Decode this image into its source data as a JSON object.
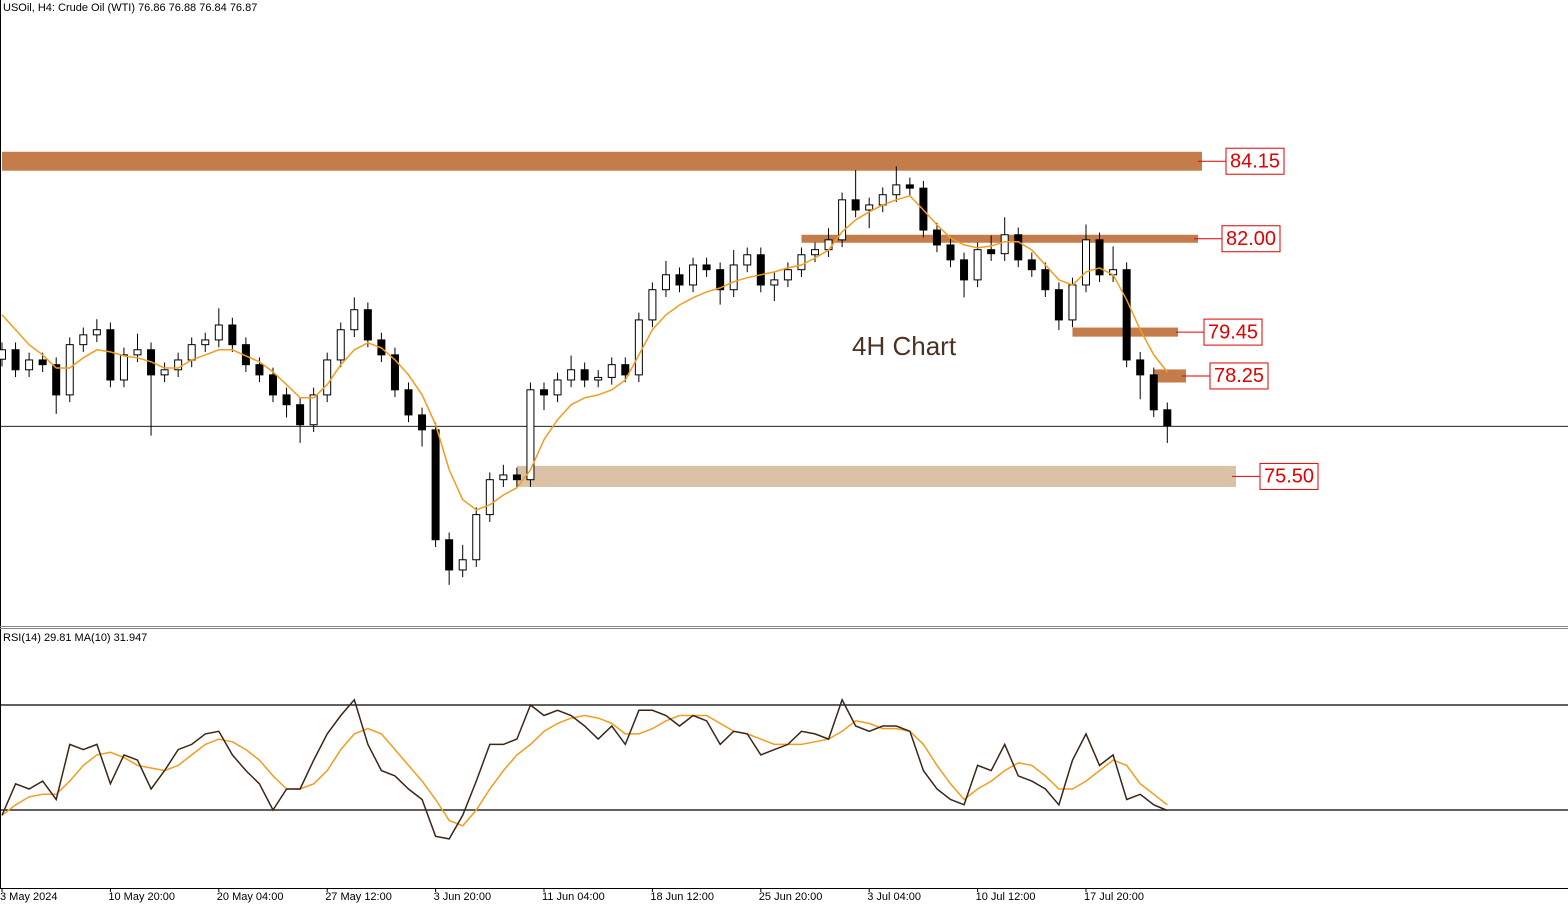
{
  "chart_data": [
    {
      "type": "candlestick",
      "title": "USOil, H4:  Crude Oil (WTI)  76.86 76.88 76.84 76.87",
      "annotation": "4H Chart",
      "categories": [
        "3 May 2024",
        null,
        null,
        null,
        null,
        null,
        null,
        null,
        "10 May 20:00",
        null,
        null,
        null,
        null,
        null,
        null,
        null,
        "20 May 04:00",
        null,
        null,
        null,
        null,
        null,
        null,
        null,
        "27 May 12:00",
        null,
        null,
        null,
        null,
        null,
        null,
        null,
        "3 Jun 20:00",
        null,
        null,
        null,
        null,
        null,
        null,
        null,
        "11 Jun 04:00",
        null,
        null,
        null,
        null,
        null,
        null,
        null,
        "18 Jun 12:00",
        null,
        null,
        null,
        null,
        null,
        null,
        null,
        "25 Jun 20:00",
        null,
        null,
        null,
        null,
        null,
        null,
        null,
        "3 Jul 04:00",
        null,
        null,
        null,
        null,
        null,
        null,
        null,
        "10 Jul 12:00",
        null,
        null,
        null,
        null,
        null,
        null,
        null,
        "17 Jul 20:00",
        null,
        null,
        null,
        null,
        null,
        null
      ],
      "open": [
        78.7,
        78.96,
        78.41,
        78.68,
        78.55,
        77.72,
        79.1,
        79.37,
        79.51,
        78.13,
        78.82,
        78.96,
        78.27,
        78.41,
        78.68,
        79.1,
        79.23,
        79.64,
        79.1,
        78.55,
        78.27,
        77.72,
        77.45,
        76.9,
        77.72,
        78.68,
        79.51,
        80.06,
        79.23,
        78.82,
        77.86,
        77.17,
        76.76,
        73.74,
        72.91,
        73.19,
        74.43,
        75.39,
        75.52,
        75.39,
        77.86,
        77.72,
        78.13,
        78.41,
        78.13,
        78.2,
        78.55,
        78.27,
        79.78,
        80.61,
        81.02,
        80.74,
        81.29,
        81.16,
        80.61,
        81.29,
        81.57,
        80.74,
        80.88,
        81.16,
        81.57,
        81.71,
        81.98,
        83.08,
        82.8,
        82.94,
        83.22,
        83.49,
        83.4,
        82.25,
        81.84,
        81.43,
        80.88,
        81.71,
        81.6,
        82.12,
        81.43,
        81.16,
        80.61,
        79.78,
        80.74,
        81.98,
        81.02,
        81.16,
        78.68,
        78.27,
        77.31
      ],
      "high": [
        79.16,
        79.16,
        78.88,
        78.88,
        78.75,
        79.3,
        79.57,
        79.8,
        79.71,
        79.02,
        79.4,
        79.16,
        78.61,
        78.88,
        79.3,
        79.43,
        80.1,
        79.84,
        79.3,
        78.75,
        78.47,
        77.92,
        77.65,
        77.92,
        78.88,
        79.71,
        80.4,
        80.26,
        79.43,
        79.02,
        78.06,
        77.37,
        76.96,
        73.94,
        73.6,
        74.63,
        75.59,
        75.8,
        75.72,
        78.06,
        78.06,
        78.33,
        78.8,
        78.61,
        78.4,
        78.75,
        78.75,
        79.98,
        80.81,
        81.4,
        81.22,
        81.49,
        81.49,
        81.36,
        81.7,
        81.77,
        81.77,
        81.08,
        81.36,
        81.77,
        81.91,
        82.3,
        83.28,
        83.9,
        83.14,
        83.42,
        84.0,
        83.69,
        83.6,
        82.45,
        82.04,
        81.63,
        81.91,
        82.1,
        82.6,
        82.32,
        81.63,
        81.36,
        80.81,
        80.94,
        82.4,
        82.18,
        81.8,
        81.36,
        78.9,
        78.47,
        77.51
      ],
      "low": [
        78.5,
        78.21,
        78.21,
        78.35,
        77.2,
        77.52,
        78.9,
        79.17,
        77.93,
        77.93,
        78.62,
        76.6,
        78.07,
        78.21,
        78.48,
        78.9,
        79.03,
        78.9,
        78.35,
        78.07,
        77.52,
        77.1,
        76.4,
        76.7,
        77.52,
        78.48,
        79.31,
        79.03,
        78.62,
        77.66,
        76.97,
        76.3,
        73.54,
        72.5,
        72.71,
        72.99,
        74.23,
        75.19,
        75.19,
        75.19,
        77.3,
        77.52,
        77.93,
        77.93,
        77.93,
        78.0,
        78.07,
        78.07,
        79.58,
        80.41,
        80.54,
        80.54,
        80.96,
        80.2,
        80.41,
        81.09,
        80.54,
        80.3,
        80.68,
        80.96,
        81.37,
        81.51,
        81.78,
        82.6,
        82.3,
        82.74,
        83.02,
        83.2,
        82.05,
        81.64,
        81.23,
        80.4,
        80.68,
        81.4,
        81.4,
        81.23,
        80.96,
        80.41,
        79.5,
        79.58,
        80.54,
        80.82,
        80.82,
        78.48,
        77.6,
        77.11,
        76.4
      ],
      "close": [
        78.96,
        78.41,
        78.68,
        78.55,
        77.72,
        79.1,
        79.37,
        79.51,
        78.13,
        78.82,
        78.96,
        78.27,
        78.41,
        78.68,
        79.1,
        79.23,
        79.64,
        79.1,
        78.55,
        78.27,
        77.72,
        77.45,
        76.9,
        77.72,
        78.68,
        79.51,
        80.06,
        79.23,
        78.82,
        77.86,
        77.17,
        76.76,
        73.74,
        72.91,
        73.19,
        74.43,
        75.39,
        75.52,
        75.39,
        77.86,
        77.72,
        78.13,
        78.41,
        78.13,
        78.2,
        78.55,
        78.27,
        79.78,
        80.61,
        81.02,
        80.74,
        81.29,
        81.16,
        80.61,
        81.29,
        81.57,
        80.74,
        80.88,
        81.16,
        81.57,
        81.71,
        81.98,
        83.08,
        82.8,
        82.94,
        83.22,
        83.49,
        83.4,
        82.25,
        81.84,
        81.43,
        80.88,
        81.71,
        81.6,
        82.12,
        81.43,
        81.16,
        80.61,
        79.78,
        80.74,
        81.98,
        81.02,
        81.16,
        78.68,
        78.27,
        77.31,
        76.87
      ],
      "ma": [
        79.92,
        79.51,
        79.1,
        78.82,
        78.46,
        78.46,
        78.74,
        78.96,
        78.9,
        78.79,
        78.74,
        78.63,
        78.46,
        78.46,
        78.68,
        78.82,
        78.96,
        78.96,
        78.79,
        78.63,
        78.35,
        78.0,
        77.64,
        77.64,
        78.0,
        78.55,
        78.96,
        79.15,
        79.01,
        78.68,
        78.27,
        77.72,
        76.9,
        75.66,
        74.84,
        74.56,
        74.7,
        74.97,
        75.17,
        75.66,
        76.49,
        77.04,
        77.45,
        77.64,
        77.72,
        77.86,
        78.13,
        78.82,
        79.51,
        79.92,
        80.19,
        80.39,
        80.55,
        80.66,
        80.83,
        80.94,
        81.02,
        81.1,
        81.21,
        81.29,
        81.48,
        81.7,
        82.2,
        82.53,
        82.75,
        82.94,
        83.08,
        83.19,
        82.8,
        82.39,
        82.03,
        81.84,
        81.76,
        81.81,
        81.93,
        81.93,
        81.7,
        81.29,
        80.88,
        80.74,
        81.1,
        81.21,
        81.02,
        80.33,
        79.51,
        78.82,
        78.35
      ],
      "ma_color": "#f39c1e",
      "ylim": [
        71.37,
        88.57
      ],
      "zones": [
        {
          "label": "84.15",
          "top": 84.4,
          "bottom": 83.88,
          "start": 0,
          "color": "#c47d4a"
        },
        {
          "label": "82.00",
          "top": 82.12,
          "bottom": 81.9,
          "start": 59,
          "color": "#c47d4a"
        },
        {
          "label": "79.45",
          "top": 79.57,
          "bottom": 79.32,
          "start": 79,
          "color": "#c47d4a"
        },
        {
          "label": "78.25",
          "top": 78.42,
          "bottom": 78.06,
          "start": 85,
          "color": "#c47d4a"
        },
        {
          "label": "75.50",
          "top": 75.77,
          "bottom": 75.19,
          "start": 38,
          "color": "#dbc2a6"
        }
      ]
    },
    {
      "type": "line",
      "title": "RSI(14) 29.81 MA(10) 31.947",
      "ylim": [
        0,
        100
      ],
      "levels": [
        30,
        70
      ],
      "series": [
        {
          "color": "#3a2718",
          "values": [
            28,
            40,
            38,
            41,
            34,
            55,
            53,
            55,
            40,
            51,
            49,
            38,
            45,
            53,
            55,
            59,
            60,
            51,
            45,
            40,
            30,
            38,
            38,
            49,
            59,
            66,
            72,
            55,
            45,
            43,
            38,
            34,
            20,
            19,
            28,
            41,
            55,
            55,
            57,
            70,
            66,
            68,
            66,
            62,
            57,
            62,
            55,
            68,
            68,
            66,
            62,
            66,
            64,
            55,
            60,
            59,
            51,
            53,
            55,
            60,
            59,
            57,
            72,
            62,
            60,
            62,
            62,
            60,
            45,
            38,
            34,
            32,
            47,
            45,
            55,
            43,
            41,
            38,
            32,
            49,
            59,
            47,
            51,
            34,
            36,
            32,
            29.81
          ]
        },
        {
          "color": "#f39c1e",
          "values": [
            28,
            32,
            35,
            36,
            36,
            41,
            47,
            51,
            52,
            50,
            47,
            46,
            45,
            47,
            51,
            55,
            57,
            56,
            53,
            49,
            43,
            38,
            38,
            40,
            45,
            53,
            59,
            61,
            59,
            53,
            47,
            41,
            34,
            26,
            24,
            30,
            38,
            45,
            51,
            55,
            60,
            63,
            65,
            66,
            65,
            63,
            59,
            59,
            61,
            64,
            66,
            66,
            66,
            63,
            60,
            59,
            57,
            55,
            55,
            55,
            56,
            57,
            60,
            64,
            63,
            61,
            61,
            60,
            55,
            47,
            40,
            34,
            38,
            41,
            45,
            48,
            47,
            43,
            38,
            38,
            41,
            45,
            49,
            47,
            40,
            36,
            31.947
          ]
        }
      ]
    }
  ]
}
